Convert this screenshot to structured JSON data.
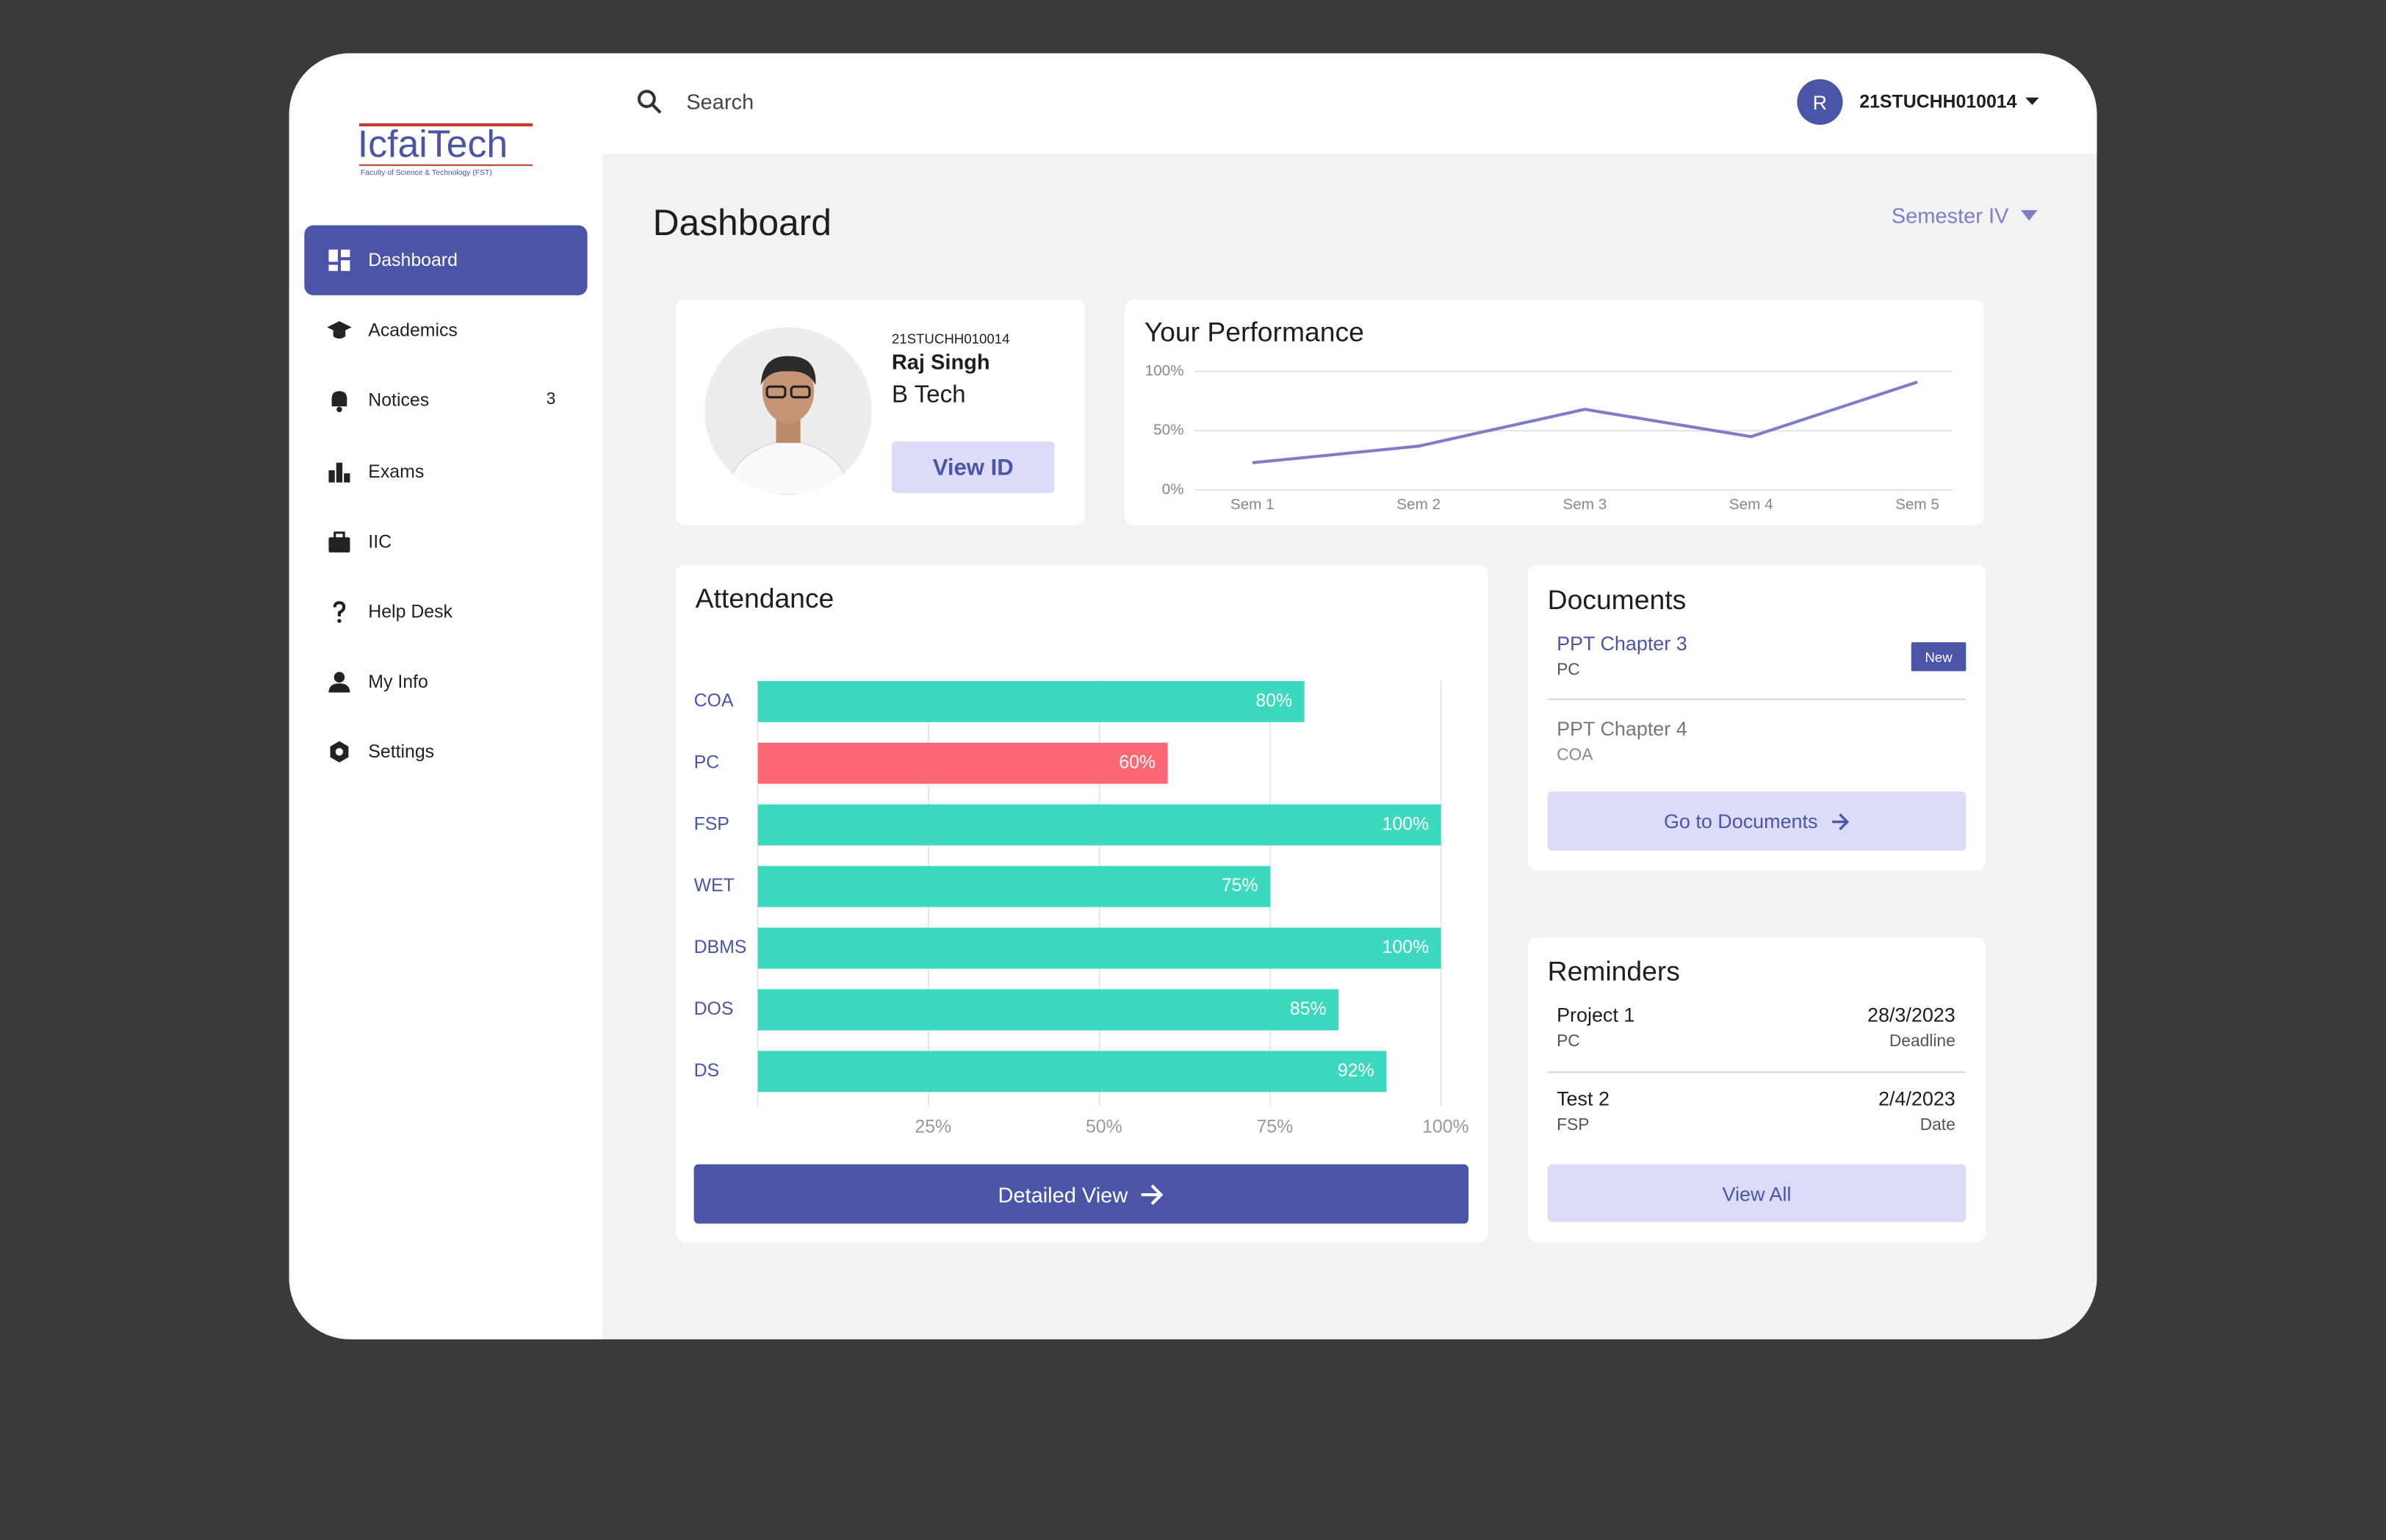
{
  "header": {
    "search_placeholder": "Search",
    "user_initial": "R",
    "user_id": "21STUCHH010014"
  },
  "sidebar": {
    "logo": "IcfaiTech",
    "logo_subtitle": "Faculty of Science & Technology (FST)",
    "nav": [
      {
        "label": "Dashboard"
      },
      {
        "label": "Academics"
      },
      {
        "label": "Notices",
        "badge": 3
      },
      {
        "label": "Exams"
      },
      {
        "label": "IIC"
      },
      {
        "label": "Help Desk"
      },
      {
        "label": "My Info"
      },
      {
        "label": "Settings"
      }
    ]
  },
  "page": {
    "title": "Dashboard",
    "semester": "Semester IV"
  },
  "profile": {
    "id": "21STUCHH010014",
    "name": "Raj Singh",
    "program": "B Tech",
    "button": "View ID"
  },
  "performance": {
    "type": "line",
    "title": "Your Performance",
    "categories": [
      "Sem 1",
      "Sem 2",
      "Sem 3",
      "Sem 4",
      "Sem 5"
    ],
    "values": [
      23,
      37,
      68,
      45,
      91
    ],
    "color": "#7d7ec6",
    "ylim": [
      0,
      100
    ],
    "yticks": [
      {
        "value": 0,
        "label": "0%"
      },
      {
        "value": 50,
        "label": "50%"
      },
      {
        "value": 100,
        "label": "100%"
      }
    ],
    "grid": true
  },
  "attendance": {
    "type": "bar",
    "orientation": "horizontal",
    "title": "Attendance",
    "categories": [
      "COA",
      "PC",
      "FSP",
      "WET",
      "DBMS",
      "DOS",
      "DS"
    ],
    "values": [
      80,
      60,
      100,
      75,
      100,
      85,
      92
    ],
    "value_labels": [
      "80%",
      "60%",
      "100%",
      "75%",
      "100%",
      "85%",
      "92%"
    ],
    "colors": [
      "#3dd9bf",
      "#fe6874",
      "#3dd9bf",
      "#3dd9bf",
      "#3dd9bf",
      "#3dd9bf",
      "#3dd9bf"
    ],
    "xlim": [
      0,
      100
    ],
    "xticks": [
      {
        "value": 25,
        "label": "25%"
      },
      {
        "value": 50,
        "label": "50%"
      },
      {
        "value": 75,
        "label": "75%"
      },
      {
        "value": 100,
        "label": "100%"
      }
    ],
    "grid": true,
    "button": "Detailed View"
  },
  "documents": {
    "title": "Documents",
    "items": [
      {
        "name": "PPT Chapter 3",
        "course": "PC",
        "tag": "New"
      },
      {
        "name": "PPT Chapter 4",
        "course": "COA"
      }
    ],
    "button": "Go to Documents"
  },
  "reminders": {
    "title": "Reminders",
    "items": [
      {
        "name": "Project 1",
        "course": "PC",
        "date": "28/3/2023",
        "kind": "Deadline"
      },
      {
        "name": "Test 2",
        "course": "FSP",
        "date": "2/4/2023",
        "kind": "Date"
      }
    ],
    "button": "View All"
  }
}
